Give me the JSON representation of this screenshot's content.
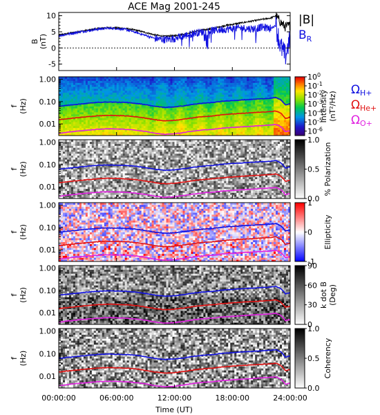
{
  "chart_data": {
    "type": "heatmap",
    "title": "ACE Mag 2001-245",
    "xlabel": "Time (UT)",
    "x_ticks": [
      "00:00:00",
      "06:00:00",
      "12:00:00",
      "18:00:00",
      "24:00:00"
    ],
    "xlim_hours": [
      0,
      24
    ],
    "field_panel": {
      "type": "line",
      "ylabel_line1": "B",
      "ylabel_line2": "(nT)",
      "ylim": [
        -7,
        11
      ],
      "y_ticks": [
        "10",
        "5",
        "0",
        "-5"
      ],
      "y_tick_values": [
        10,
        5,
        0,
        -5
      ],
      "legend": [
        {
          "text": "|B|",
          "color": "#000000"
        },
        {
          "text": "B",
          "sub": "R",
          "color": "#1010e0"
        }
      ],
      "series": [
        {
          "name": "|B|",
          "color": "#000000",
          "x": [
            0,
            1,
            2,
            3,
            4,
            5,
            6,
            7,
            8,
            9,
            10,
            11,
            12,
            13,
            14,
            15,
            16,
            17,
            18,
            19,
            20,
            21,
            22,
            22.5,
            23,
            23.5,
            24
          ],
          "y": [
            4.0,
            4.5,
            5.0,
            5.5,
            6.0,
            6.3,
            6.2,
            6.0,
            5.5,
            4.8,
            4.0,
            3.6,
            3.8,
            4.3,
            5.0,
            5.6,
            6.0,
            6.8,
            7.3,
            7.8,
            8.3,
            8.8,
            9.3,
            10.0,
            8.0,
            6.5,
            7.0
          ]
        },
        {
          "name": "B_R",
          "color": "#1010e0",
          "x": [
            0,
            1,
            2,
            3,
            4,
            5,
            6,
            7,
            8,
            9,
            10,
            11,
            12,
            13,
            14,
            15,
            16,
            17,
            18,
            19,
            20,
            21,
            22,
            22.5,
            23,
            23.5,
            24
          ],
          "y": [
            3.8,
            4.3,
            4.9,
            5.3,
            5.8,
            6.1,
            6.0,
            5.7,
            4.8,
            3.9,
            2.9,
            2.6,
            2.9,
            3.7,
            4.6,
            5.0,
            5.4,
            5.7,
            6.0,
            6.2,
            5.9,
            6.4,
            6.1,
            7.0,
            0.5,
            -2.5,
            3.0
          ]
        }
      ]
    },
    "freq_axis": {
      "ylabel_line1": "f",
      "ylabel_line2": "(Hz)",
      "scale": "log",
      "ylim": [
        0.003,
        1.3
      ],
      "y_ticks": [
        "1.00",
        "0.10",
        "0.01"
      ],
      "y_tick_values": [
        1.0,
        0.1,
        0.01
      ]
    },
    "gyro_lines": {
      "x": [
        0,
        1,
        2,
        3,
        4,
        5,
        6,
        7,
        8,
        9,
        10,
        11,
        12,
        13,
        14,
        15,
        16,
        17,
        18,
        19,
        20,
        21,
        22,
        22.5,
        23,
        23.5,
        24
      ],
      "series": [
        {
          "name": "H+",
          "color": "#1010e0",
          "y": [
            0.061,
            0.069,
            0.076,
            0.084,
            0.092,
            0.096,
            0.094,
            0.091,
            0.084,
            0.073,
            0.061,
            0.055,
            0.058,
            0.065,
            0.076,
            0.085,
            0.091,
            0.104,
            0.111,
            0.119,
            0.126,
            0.134,
            0.142,
            0.152,
            0.122,
            0.07,
            0.08
          ]
        },
        {
          "name": "He+",
          "color": "#e01010",
          "y": [
            0.0153,
            0.0172,
            0.0191,
            0.021,
            0.0229,
            0.0241,
            0.0237,
            0.0229,
            0.021,
            0.0183,
            0.0153,
            0.0137,
            0.0145,
            0.0164,
            0.0191,
            0.0214,
            0.0229,
            0.0259,
            0.0278,
            0.0297,
            0.0317,
            0.0336,
            0.0355,
            0.0381,
            0.0305,
            0.0175,
            0.02
          ]
        },
        {
          "name": "O+",
          "color": "#e020e0",
          "y": [
            0.0038,
            0.0043,
            0.0048,
            0.0052,
            0.0057,
            0.006,
            0.0059,
            0.0057,
            0.0052,
            0.0046,
            0.0038,
            0.0034,
            0.0036,
            0.0041,
            0.0048,
            0.0054,
            0.0057,
            0.0065,
            0.0069,
            0.0074,
            0.0079,
            0.0084,
            0.0089,
            0.0095,
            0.0076,
            0.0044,
            0.005
          ]
        }
      ]
    },
    "spectral_panels": [
      {
        "name": "intensity",
        "colormap": "rainbow",
        "colorbar_label_line1": "Intensity",
        "colorbar_label_line2": "(nT²/Hz)",
        "colorbar_tick_base": "10",
        "colorbar_tick_exponents": [
          "0",
          "-1",
          "-2",
          "-3",
          "-4",
          "-5",
          "-6"
        ],
        "colorbar_range": [
          -6.5,
          0
        ],
        "legend": [
          {
            "symbol": "Ω",
            "sub": "H+",
            "color": "#1010e0"
          },
          {
            "symbol": "Ω",
            "sub": "He+",
            "color": "#e01010"
          },
          {
            "symbol": "Ω",
            "sub": "O+",
            "color": "#e020e0"
          }
        ]
      },
      {
        "name": "polarization",
        "colormap": "gray",
        "colorbar_label": "% Polarization",
        "colorbar_ticks": [
          "1.0",
          "0.5",
          "0.0"
        ],
        "colorbar_tick_values": [
          1.0,
          0.5,
          0.0
        ],
        "colorbar_range": [
          0,
          1
        ]
      },
      {
        "name": "ellipticity",
        "colormap": "bluewhitered",
        "colorbar_label": "Ellipticity",
        "colorbar_ticks": [
          "1",
          "0",
          "-1"
        ],
        "colorbar_tick_values": [
          1,
          0,
          -1
        ],
        "colorbar_range": [
          -1,
          1
        ]
      },
      {
        "name": "k-dot-b",
        "colormap": "gray",
        "colorbar_label_line1": "k dot B",
        "colorbar_label_line2": "(Deg)",
        "colorbar_ticks": [
          "90",
          "60",
          "30",
          "0"
        ],
        "colorbar_tick_values": [
          90,
          60,
          30,
          0
        ],
        "colorbar_range": [
          0,
          90
        ]
      },
      {
        "name": "coherency",
        "colormap": "gray",
        "colorbar_label": "Coherency",
        "colorbar_ticks": [
          "1.0",
          "0.5",
          "0.0"
        ],
        "colorbar_tick_values": [
          1.0,
          0.5,
          0.0
        ],
        "colorbar_range": [
          0,
          1
        ]
      }
    ]
  }
}
